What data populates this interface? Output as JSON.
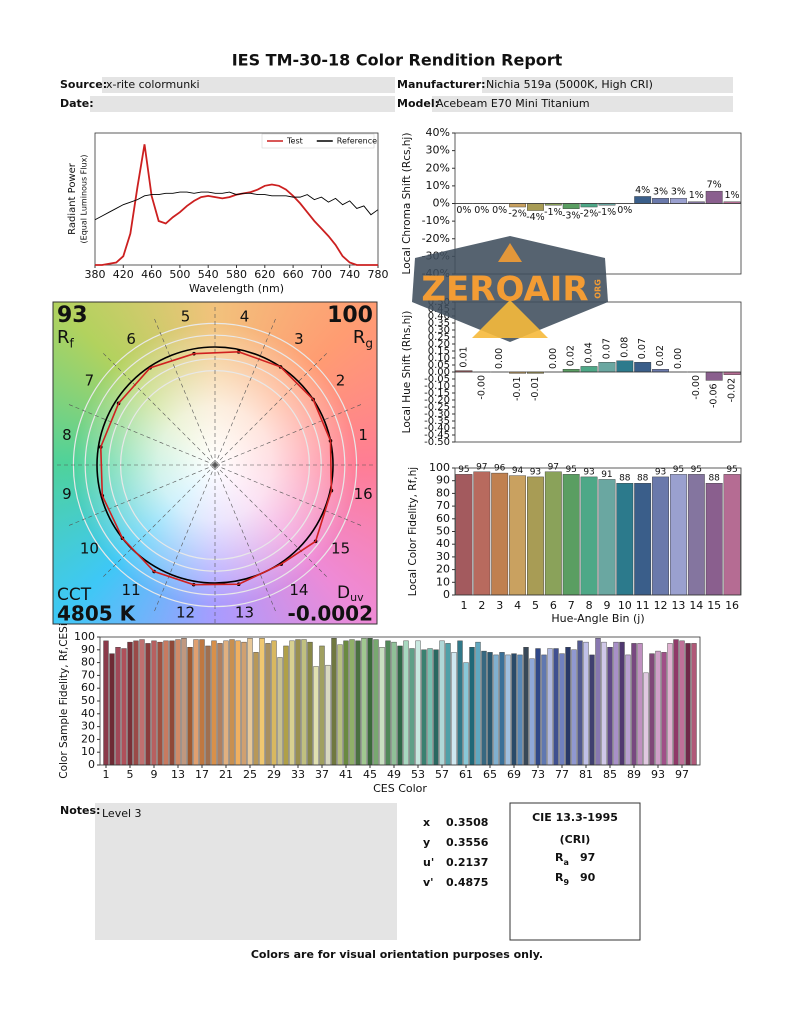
{
  "header": {
    "title": "IES TM-30-18 Color Rendition Report",
    "source_label": "Source:",
    "source": "x-rite colormunki",
    "date_label": "Date:",
    "manufacturer_label": "Manufacturer:",
    "manufacturer": "Nichia 519a (5000K, High CRI)",
    "model_label": "Model:",
    "model": "Acebeam E70 Mini Titanium"
  },
  "chart_data": [
    {
      "type": "line",
      "xlabel": "Wavelength (nm)",
      "ylabel": [
        "Radiant Power",
        "(Equal Luminous Flux)"
      ],
      "x": [
        380,
        390,
        400,
        410,
        420,
        430,
        440,
        450,
        460,
        470,
        480,
        490,
        500,
        510,
        520,
        530,
        540,
        550,
        560,
        570,
        580,
        590,
        600,
        610,
        620,
        630,
        640,
        650,
        660,
        670,
        680,
        690,
        700,
        710,
        720,
        730,
        740,
        750,
        760,
        770,
        780
      ],
      "xlim": [
        380,
        780
      ],
      "xticks": [
        380,
        420,
        460,
        500,
        540,
        580,
        620,
        660,
        700,
        740,
        780
      ],
      "ylim": [
        0,
        1.05
      ],
      "legend": "upper right",
      "series": [
        {
          "name": "Test",
          "color": "#cc2020",
          "values": [
            0,
            0,
            0.01,
            0.02,
            0.07,
            0.25,
            0.62,
            0.96,
            0.55,
            0.35,
            0.33,
            0.38,
            0.42,
            0.47,
            0.51,
            0.54,
            0.55,
            0.54,
            0.53,
            0.54,
            0.56,
            0.57,
            0.58,
            0.6,
            0.63,
            0.64,
            0.63,
            0.6,
            0.55,
            0.49,
            0.42,
            0.35,
            0.29,
            0.23,
            0.16,
            0.07,
            0.02,
            0,
            0,
            0,
            0
          ]
        },
        {
          "name": "Reference",
          "color": "#000000",
          "values": [
            0.36,
            0.39,
            0.42,
            0.45,
            0.48,
            0.5,
            0.52,
            0.55,
            0.56,
            0.56,
            0.57,
            0.57,
            0.58,
            0.58,
            0.57,
            0.58,
            0.58,
            0.57,
            0.57,
            0.58,
            0.56,
            0.57,
            0.57,
            0.56,
            0.56,
            0.55,
            0.55,
            0.55,
            0.54,
            0.54,
            0.56,
            0.52,
            0.54,
            0.5,
            0.53,
            0.48,
            0.51,
            0.45,
            0.47,
            0.4,
            0.44
          ]
        }
      ]
    },
    {
      "type": "vector",
      "rf": 93,
      "rf_label": [
        "R",
        "f"
      ],
      "rg": 100,
      "rg_label": [
        "R",
        "g"
      ],
      "cct_label": "CCT",
      "cct": "4805 K",
      "duv_label": [
        "D",
        "uv"
      ],
      "duv": -0.0002
    },
    {
      "type": "bar",
      "ylabel": "Local Chroma Shift (Rcs,hj)",
      "ylim": [
        -40,
        40
      ],
      "yticks": [
        {
          "value": 40,
          "label": "40%"
        },
        {
          "value": 30,
          "label": "30%"
        },
        {
          "value": 20,
          "label": "20%"
        },
        {
          "value": 10,
          "label": "10%"
        },
        {
          "value": 0,
          "label": "0%"
        },
        {
          "value": -10,
          "label": "-10%"
        },
        {
          "value": -20,
          "label": "-20%"
        },
        {
          "value": -30,
          "label": "-30%"
        },
        {
          "value": -40,
          "label": "-40%"
        }
      ],
      "values": [
        0,
        0,
        0,
        -2,
        -4,
        -1,
        -3,
        -2,
        -1,
        0,
        4,
        3,
        3,
        1,
        7,
        1
      ],
      "value_labels": [
        "0%",
        "0%",
        "0%",
        "-2%",
        "-4%",
        "-1%",
        "-3%",
        "-2%",
        "-1%",
        "0%",
        "4%",
        "3%",
        "3%",
        "1%",
        "7%",
        "1%"
      ],
      "colors": [
        "#a35a5e",
        "#b86a5e",
        "#c0804f",
        "#c9a160",
        "#a89c55",
        "#8aa25a",
        "#5a9e62",
        "#4ea887",
        "#6aa7a1",
        "#2c7a8c",
        "#3a5e8a",
        "#6a79ab",
        "#9aa0cf",
        "#84759f",
        "#8a5f8e",
        "#b56c93"
      ]
    },
    {
      "type": "bar",
      "ylabel": "Local Hue Shift (Rhs,hj)",
      "ylim": [
        -0.5,
        0.5
      ],
      "yticks": [
        {
          "value": 0.5,
          "label": "0.50"
        },
        0.45,
        {
          "value": 0.4,
          "label": "0.40"
        },
        0.35,
        {
          "value": 0.3,
          "label": "0.30"
        },
        0.25,
        {
          "value": 0.2,
          "label": "0.20"
        },
        0.15,
        {
          "value": 0.1,
          "label": "0.10"
        },
        0.05,
        {
          "value": 0,
          "label": "0.00"
        },
        -0.05,
        {
          "value": -0.1,
          "label": "-0.10"
        },
        -0.15,
        {
          "value": -0.2,
          "label": "-0.20"
        },
        -0.25,
        {
          "value": -0.3,
          "label": "-0.30"
        },
        -0.35,
        {
          "value": -0.4,
          "label": "-0.40"
        },
        -0.45,
        {
          "value": -0.5,
          "label": "-0.50"
        }
      ],
      "values": [
        0.01,
        -0.0,
        0.0,
        -0.01,
        -0.01,
        0.0,
        0.02,
        0.04,
        0.07,
        0.08,
        0.07,
        0.02,
        0.0,
        -0.0,
        -0.06,
        -0.02
      ],
      "value_labels": [
        "0.01",
        "-0.00",
        "0.00",
        "-0.01",
        "-0.01",
        "0.00",
        "0.02",
        "0.04",
        "0.07",
        "0.08",
        "0.07",
        "0.02",
        "0.00",
        "-0.00",
        "-0.06",
        "-0.02"
      ],
      "colors": [
        "#a35a5e",
        "#b86a5e",
        "#c0804f",
        "#c9a160",
        "#a89c55",
        "#8aa25a",
        "#5a9e62",
        "#4ea887",
        "#6aa7a1",
        "#2c7a8c",
        "#3a5e8a",
        "#6a79ab",
        "#9aa0cf",
        "#84759f",
        "#8a5f8e",
        "#b56c93"
      ]
    },
    {
      "type": "bar",
      "ylabel": "Local Color Fidelity, Rf,hj",
      "xlabel": "Hue-Angle Bin (j)",
      "ylim": [
        0,
        100
      ],
      "yticks": [
        0,
        10,
        20,
        30,
        40,
        50,
        60,
        70,
        80,
        90,
        100
      ],
      "data_labels": true,
      "categories": [
        "1",
        "2",
        "3",
        "4",
        "5",
        "6",
        "7",
        "8",
        "9",
        "10",
        "11",
        "12",
        "13",
        "14",
        "15",
        "16"
      ],
      "values": [
        95,
        97,
        96,
        94,
        93,
        97,
        95,
        93,
        91,
        88,
        88,
        93,
        95,
        95,
        88,
        95
      ],
      "colors": [
        "#a35a5e",
        "#b86a5e",
        "#c0804f",
        "#c9a160",
        "#a89c55",
        "#8aa25a",
        "#5a9e62",
        "#4ea887",
        "#6aa7a1",
        "#2c7a8c",
        "#3a5e8a",
        "#6a79ab",
        "#9aa0cf",
        "#84759f",
        "#8a5f8e",
        "#b56c93"
      ]
    },
    {
      "type": "bar",
      "ylabel": "Color Sample Fidelity, Rf,CESi",
      "xlabel": "CES Color",
      "ylim": [
        0,
        100
      ],
      "yticks": [
        0,
        10,
        20,
        30,
        40,
        50,
        60,
        70,
        80,
        90,
        100
      ],
      "xlim": [
        0,
        100
      ],
      "xticks": [
        1,
        5,
        9,
        13,
        17,
        21,
        25,
        29,
        33,
        37,
        41,
        45,
        49,
        53,
        57,
        61,
        65,
        69,
        73,
        77,
        81,
        85,
        89,
        93,
        97
      ],
      "x": [
        1,
        2,
        3,
        4,
        5,
        6,
        7,
        8,
        9,
        10,
        11,
        12,
        13,
        14,
        15,
        16,
        17,
        18,
        19,
        20,
        21,
        22,
        23,
        24,
        25,
        26,
        27,
        28,
        29,
        30,
        31,
        32,
        33,
        34,
        35,
        36,
        37,
        38,
        39,
        40,
        41,
        42,
        43,
        44,
        45,
        46,
        47,
        48,
        49,
        50,
        51,
        52,
        53,
        54,
        55,
        56,
        57,
        58,
        59,
        60,
        61,
        62,
        63,
        64,
        65,
        66,
        67,
        68,
        69,
        70,
        71,
        72,
        73,
        74,
        75,
        76,
        77,
        78,
        79,
        80,
        81,
        82,
        83,
        84,
        85,
        86,
        87,
        88,
        89,
        90,
        91,
        92,
        93,
        94,
        95,
        96,
        97,
        98,
        99
      ],
      "values": [
        97,
        87,
        92,
        91,
        96,
        97,
        98,
        95,
        97,
        96,
        97,
        97,
        98,
        99,
        92,
        98,
        98,
        93,
        97,
        95,
        97,
        98,
        97,
        96,
        99,
        88,
        99,
        95,
        97,
        84,
        93,
        97,
        98,
        98,
        96,
        77,
        93,
        78,
        99,
        94,
        97,
        98,
        97,
        99,
        99,
        98,
        92,
        97,
        96,
        93,
        97,
        91,
        97,
        90,
        91,
        90,
        97,
        95,
        88,
        97,
        80,
        92,
        96,
        89,
        88,
        86,
        88,
        86,
        87,
        86,
        92,
        83,
        91,
        86,
        91,
        91,
        87,
        92,
        90,
        97,
        96,
        86,
        99,
        96,
        92,
        96,
        96,
        86,
        95,
        95,
        72,
        87,
        89,
        88,
        95,
        98,
        97,
        95,
        95
      ],
      "colors": [
        "#8b3a4a",
        "#6e2a35",
        "#a04858",
        "#b0505a",
        "#7a3038",
        "#9a4a48",
        "#c07070",
        "#8a3c3c",
        "#b86060",
        "#a05040",
        "#c87a60",
        "#904838",
        "#d08a68",
        "#c09880",
        "#a05a30",
        "#e0a070",
        "#c07840",
        "#a07050",
        "#d8904a",
        "#b08060",
        "#e0b080",
        "#c89050",
        "#f0b060",
        "#d0a070",
        "#e8c898",
        "#b89858",
        "#f0c870",
        "#a89060",
        "#d8b860",
        "#c8c090",
        "#b0a048",
        "#d8d090",
        "#9a9050",
        "#c0c080",
        "#888848",
        "#e0e0b0",
        "#a0a060",
        "#d8d8c0",
        "#707840",
        "#b8c080",
        "#6a8a40",
        "#90b068",
        "#4a7040",
        "#a0c890",
        "#3a6a3a",
        "#78a870",
        "#c8e0c0",
        "#508858",
        "#90c098",
        "#306848",
        "#a8d8c0",
        "#60a088",
        "#c8e8e0",
        "#3a8070",
        "#78c0b0",
        "#2a6860",
        "#b0d8d8",
        "#50a0a8",
        "#d0e8f0",
        "#307888",
        "#88c8d8",
        "#206878",
        "#60a8c0",
        "#386880",
        "#2a5870",
        "#80b0d0",
        "#3a7098",
        "#a0c0e0",
        "#2a4a68",
        "#5888b8",
        "#384858",
        "#90a8d8",
        "#304888",
        "#6078b0",
        "#b0b8e0",
        "#405090",
        "#7080c0",
        "#283868",
        "#9098d0",
        "#505890",
        "#c0c0e8",
        "#404070",
        "#8878b0",
        "#d0c8e8",
        "#604888",
        "#a890c8",
        "#503870",
        "#b8a0d0",
        "#784880",
        "#c090c0",
        "#e0c8e0",
        "#804878",
        "#d0a0c8",
        "#a05088",
        "#e0b0d0",
        "#903868",
        "#c07098",
        "#702848",
        "#b05878"
      ]
    }
  ],
  "notes": {
    "label": "Notes:",
    "text": "Level 3"
  },
  "chromaticity": {
    "rows": [
      [
        "x",
        "0.3508"
      ],
      [
        "y",
        "0.3556"
      ],
      [
        "u'",
        "0.2137"
      ],
      [
        "v'",
        "0.4875"
      ]
    ]
  },
  "cri": {
    "title": "CIE 13.3-1995",
    "subtitle": "(CRI)",
    "rows": [
      [
        [
          "R",
          "a"
        ],
        "97"
      ],
      [
        [
          "R",
          "9"
        ],
        "90"
      ]
    ]
  },
  "footer": "Colors are for visual orientation purposes only.",
  "watermark": {
    "text": "ZEROAIR",
    "suffix": "ORG"
  }
}
